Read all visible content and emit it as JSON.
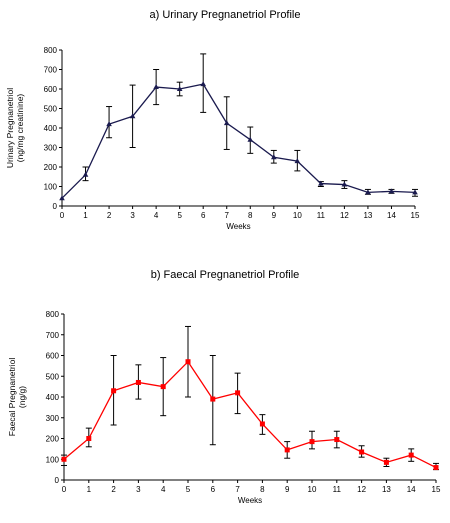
{
  "chart_data": [
    {
      "type": "line",
      "title": "a) Urinary Pregnanetriol Profile",
      "xlabel": "Weeks",
      "ylabel": "Urinary Pregnanetriol (ng/mg creatinine)",
      "ylabel_lines": [
        "Urinary Pregnanetriol",
        "(ng/mg creatinine)"
      ],
      "x": [
        0,
        1,
        2,
        3,
        4,
        5,
        6,
        7,
        8,
        9,
        10,
        11,
        12,
        13,
        14,
        15
      ],
      "xlim": [
        0,
        15
      ],
      "ylim": [
        0,
        800
      ],
      "yticks": [
        0,
        100,
        200,
        300,
        400,
        500,
        600,
        700,
        800
      ],
      "series": [
        {
          "values": [
            40,
            160,
            420,
            460,
            610,
            600,
            625,
            425,
            340,
            250,
            230,
            115,
            110,
            70,
            75,
            70
          ],
          "error_low": [
            40,
            130,
            350,
            300,
            520,
            565,
            480,
            290,
            270,
            220,
            180,
            100,
            90,
            60,
            65,
            50
          ],
          "error_high": [
            40,
            200,
            510,
            620,
            700,
            635,
            780,
            560,
            405,
            285,
            285,
            125,
            130,
            85,
            85,
            85
          ],
          "color": "#1a1a4e",
          "marker": "triangle"
        }
      ],
      "grid": false
    },
    {
      "type": "line",
      "title": "b) Faecal Pregnanetriol Profile",
      "xlabel": "Weeks",
      "ylabel": "Faecal Pregnanetriol (ng/g)",
      "ylabel_lines": [
        "Faecal Pregnanetriol",
        "(ng/g)"
      ],
      "x": [
        0,
        1,
        2,
        3,
        4,
        5,
        6,
        7,
        8,
        9,
        10,
        11,
        12,
        13,
        14,
        15
      ],
      "xlim": [
        0,
        15
      ],
      "ylim": [
        0,
        800
      ],
      "yticks": [
        0,
        100,
        200,
        300,
        400,
        500,
        600,
        700,
        800
      ],
      "series": [
        {
          "values": [
            100,
            200,
            430,
            470,
            450,
            570,
            390,
            420,
            270,
            145,
            185,
            195,
            135,
            85,
            120,
            60
          ],
          "error_low": [
            70,
            160,
            265,
            390,
            310,
            400,
            170,
            320,
            220,
            105,
            150,
            155,
            110,
            65,
            90,
            50
          ],
          "error_high": [
            120,
            250,
            600,
            555,
            590,
            740,
            600,
            515,
            315,
            185,
            235,
            235,
            165,
            105,
            150,
            80
          ],
          "color": "#ff0000",
          "marker": "square"
        }
      ],
      "grid": false
    }
  ]
}
